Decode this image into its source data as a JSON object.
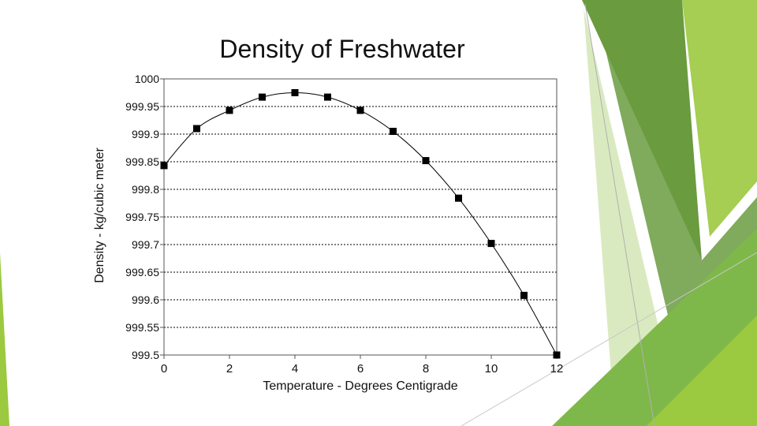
{
  "colors": {
    "accent_dark": "#6a9b3f",
    "accent_mid": "#7fb84a",
    "accent_light": "#9bc93f",
    "accent_pale": "#d4e6b5",
    "marker": "#000000",
    "gridline": "#000000"
  },
  "chart_data": {
    "type": "line",
    "title": "Density of Freshwater",
    "xlabel": "Temperature - Degrees Centigrade",
    "ylabel": "Density - kg/cubic meter",
    "xlim": [
      0,
      12
    ],
    "ylim": [
      999.5,
      1000
    ],
    "xticks": [
      0,
      2,
      4,
      6,
      8,
      10,
      12
    ],
    "xtick_labels": [
      "0",
      "2",
      "4",
      "6",
      "8",
      "10",
      "12"
    ],
    "yticks": [
      1000,
      999.95,
      999.9,
      999.85,
      999.8,
      999.75,
      999.7,
      999.65,
      999.6,
      999.55,
      999.5
    ],
    "ytick_labels": [
      "1000",
      "999.95",
      "999.9",
      "999.85",
      "999.8",
      "999.75",
      "999.7",
      "999.65",
      "999.6",
      "999.55",
      "999.5"
    ],
    "grid": "horizontal-dotted",
    "series": [
      {
        "name": "Density",
        "x": [
          0,
          1,
          2,
          3,
          4,
          5,
          6,
          7,
          8,
          9,
          10,
          11,
          12
        ],
        "values": [
          999.843,
          999.91,
          999.943,
          999.967,
          999.975,
          999.967,
          999.943,
          999.905,
          999.852,
          999.784,
          999.702,
          999.608,
          999.5
        ]
      }
    ]
  }
}
